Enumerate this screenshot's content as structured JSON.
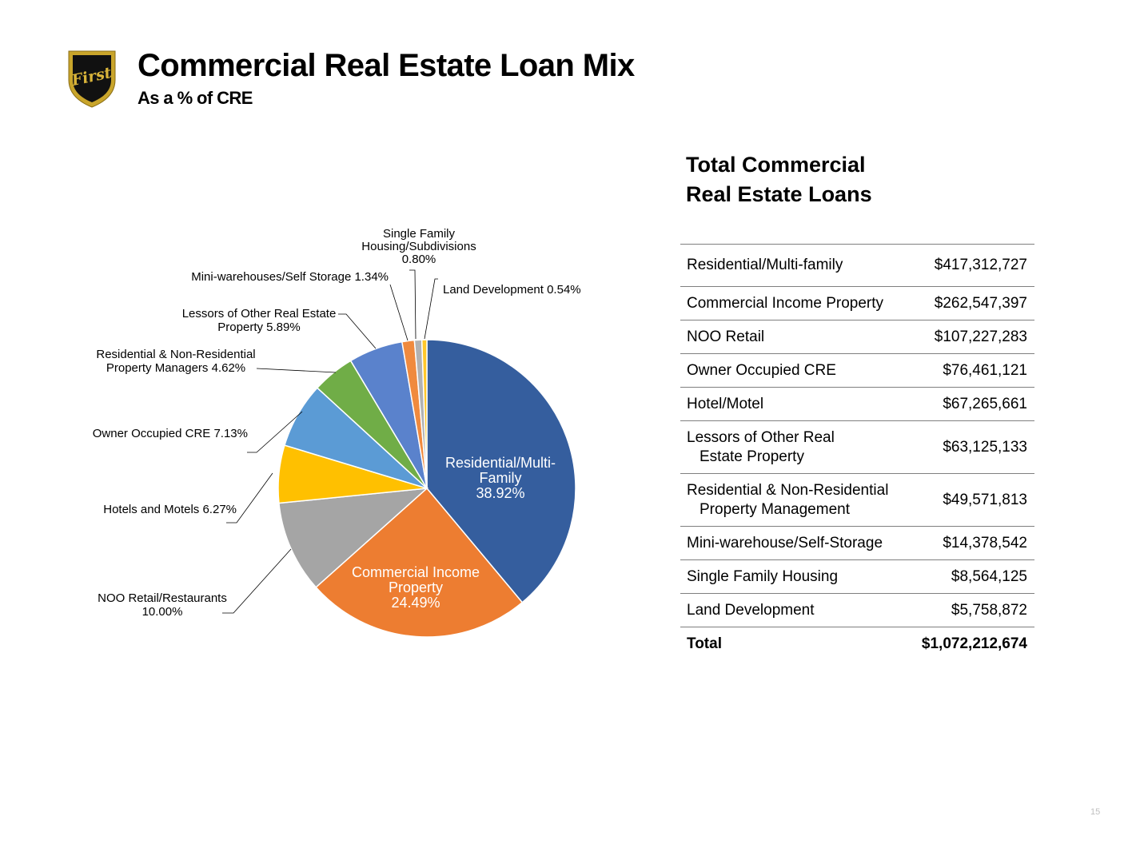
{
  "header": {
    "logo_text": "First",
    "title": "Commercial Real Estate Loan Mix",
    "subtitle": "As a % of CRE"
  },
  "chart_data": {
    "type": "pie",
    "title": "",
    "slices": [
      {
        "label": "Residential/Multi-Family",
        "lines": [
          "Residential/Multi-",
          "Family",
          "38.92%"
        ],
        "value": 38.92,
        "color": "#355E9E"
      },
      {
        "label": "Commercial Income Property",
        "lines": [
          "Commercial Income",
          "Property",
          "24.49%"
        ],
        "value": 24.49,
        "color": "#ED7D31"
      },
      {
        "label": "NOO Retail/Restaurants",
        "lines": [
          "NOO Retail/Restaurants",
          "10.00%"
        ],
        "value": 10.0,
        "color": "#A5A5A5"
      },
      {
        "label": "Hotels and Motels",
        "lines": [
          "Hotels and Motels 6.27%"
        ],
        "value": 6.27,
        "color": "#FFC000"
      },
      {
        "label": "Owner Occupied CRE",
        "lines": [
          "Owner Occupied CRE 7.13%"
        ],
        "value": 7.13,
        "color": "#5B9BD5"
      },
      {
        "label": "Residential & Non-Residential Property Managers",
        "lines": [
          "Residential & Non-Residential",
          "Property Managers 4.62%"
        ],
        "value": 4.62,
        "color": "#70AD47"
      },
      {
        "label": "Lessors of Other Real Estate Property",
        "lines": [
          "Lessors of Other Real Estate",
          "Property 5.89%"
        ],
        "value": 5.89,
        "color": "#5A82CC"
      },
      {
        "label": "Mini-warehouses/Self Storage",
        "lines": [
          "Mini-warehouses/Self Storage 1.34%"
        ],
        "value": 1.34,
        "color": "#F08A3E"
      },
      {
        "label": "Single Family Housing/Subdivisions",
        "lines": [
          "Single Family",
          "Housing/Subdivisions",
          "0.80%"
        ],
        "value": 0.8,
        "color": "#B2B2B2"
      },
      {
        "label": "Land Development",
        "lines": [
          "Land Development 0.54%"
        ],
        "value": 0.54,
        "color": "#FFC72C"
      }
    ]
  },
  "table": {
    "heading_line1": "Total Commercial",
    "heading_line2": "Real Estate Loans",
    "rows": [
      {
        "name": "Residential/Multi-family",
        "amount": "$417,312,727"
      },
      {
        "name": "Commercial Income Property",
        "amount": "$262,547,397"
      },
      {
        "name": "NOO Retail",
        "amount": "$107,227,283"
      },
      {
        "name": "Owner Occupied CRE",
        "amount": "$76,461,121"
      },
      {
        "name": "Hotel/Motel",
        "amount": "$67,265,661"
      },
      {
        "name_line1": "Lessors of Other Real",
        "name_line2": "Estate Property",
        "amount": "$63,125,133"
      },
      {
        "name_line1": "Residential & Non-Residential",
        "name_line2": "Property Management",
        "amount": "$49,571,813"
      },
      {
        "name": "Mini-warehouse/Self-Storage",
        "amount": "$14,378,542"
      },
      {
        "name": "Single Family Housing",
        "amount": "$8,564,125"
      },
      {
        "name": "Land Development",
        "amount": "$5,758,872"
      }
    ],
    "total_label": "Total",
    "total_amount": "$1,072,212,674"
  },
  "footer": {
    "page_number": "15"
  }
}
